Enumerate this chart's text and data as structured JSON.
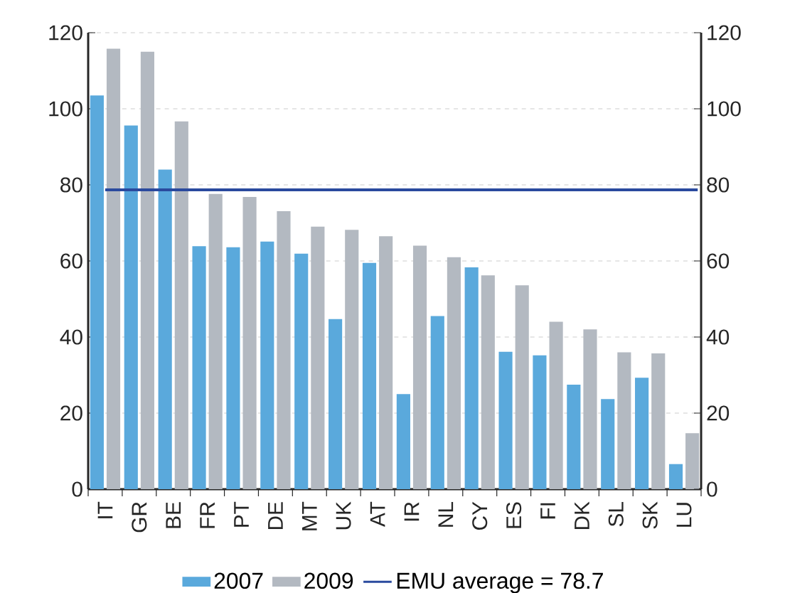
{
  "chart_data": {
    "type": "bar",
    "categories": [
      "IT",
      "GR",
      "BE",
      "FR",
      "PT",
      "DE",
      "MT",
      "UK",
      "AT",
      "IR",
      "NL",
      "CY",
      "ES",
      "FI",
      "DK",
      "SL",
      "SK",
      "LU"
    ],
    "series": [
      {
        "name": "2007",
        "color": "#5aa9dc",
        "values": [
          103.5,
          95.6,
          84,
          63.9,
          63.6,
          65.1,
          61.9,
          44.7,
          59.5,
          25,
          45.5,
          58.3,
          36.1,
          35.2,
          27.5,
          23.7,
          29.3,
          6.6
        ]
      },
      {
        "name": "2009",
        "color": "#b3b9c1",
        "values": [
          115.8,
          115,
          96.7,
          77.6,
          76.8,
          73.1,
          69,
          68.2,
          66.5,
          64,
          61,
          56.2,
          53.6,
          44,
          42,
          36,
          35.7,
          14.7
        ]
      }
    ],
    "ylim": [
      0,
      120
    ],
    "yticks": [
      0,
      20,
      40,
      60,
      80,
      100,
      120
    ],
    "y2lim": [
      0,
      120
    ],
    "y2ticks": [
      0,
      20,
      40,
      60,
      80,
      100,
      120
    ],
    "ref_lines": [
      {
        "axis": "y",
        "value": 78.7,
        "label": "EMU average = 78.7",
        "color": "#2a4a9e",
        "line_style": "solid"
      }
    ],
    "grid": "y",
    "legend": "bottom"
  }
}
